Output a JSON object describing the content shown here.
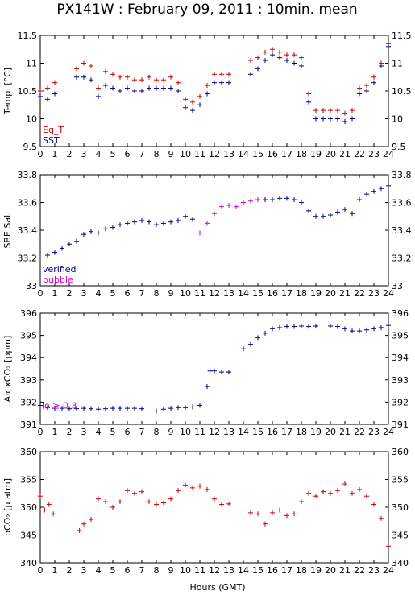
{
  "title": "PX141W : February 09, 2011 : 10min. mean",
  "xlabel": "Hours (GMT)",
  "colors": {
    "red": "#cc0000",
    "blue": "#00008b",
    "magenta": "#cc00cc"
  },
  "chart_data": [
    {
      "type": "scatter",
      "ylabel": "Temp. [°C]",
      "xlim": [
        0,
        24
      ],
      "ylim": [
        9.5,
        11.5
      ],
      "yticks": [
        9.5,
        10,
        10.5,
        11,
        11.5
      ],
      "ytick_labels": [
        "9.5",
        "10",
        "10.5",
        "11",
        "11.5"
      ],
      "legend": "bottom-left",
      "series": [
        {
          "name": "Eq_T",
          "color": "red",
          "x": [
            0,
            0.5,
            1,
            2.5,
            3,
            3.5,
            4,
            4.5,
            5,
            5.5,
            6,
            6.5,
            7,
            7.5,
            8,
            8.5,
            9,
            9.5,
            10,
            10.5,
            11,
            11.5,
            12,
            12.5,
            13,
            14.5,
            15,
            15.5,
            16,
            16.5,
            17,
            17.5,
            18,
            18.5,
            19,
            19.5,
            20,
            20.5,
            21,
            21.5,
            22,
            22.5,
            23,
            23.5,
            24
          ],
          "y": [
            10.5,
            10.55,
            10.65,
            10.9,
            11.0,
            10.95,
            10.55,
            10.85,
            10.8,
            10.75,
            10.75,
            10.7,
            10.7,
            10.75,
            10.7,
            10.7,
            10.75,
            10.65,
            10.35,
            10.3,
            10.4,
            10.6,
            10.8,
            10.8,
            10.8,
            11.05,
            11.1,
            11.2,
            11.25,
            11.2,
            11.15,
            11.15,
            11.1,
            10.45,
            10.15,
            10.15,
            10.15,
            10.15,
            10.1,
            10.15,
            10.55,
            10.6,
            10.75,
            11.0,
            11.35
          ]
        },
        {
          "name": "SST",
          "color": "blue",
          "x": [
            0,
            0.5,
            1,
            2.5,
            3,
            3.5,
            4,
            4.5,
            5,
            5.5,
            6,
            6.5,
            7,
            7.5,
            8,
            8.5,
            9,
            9.5,
            10,
            10.5,
            11,
            11.5,
            12,
            12.5,
            13,
            14.5,
            15,
            15.5,
            16,
            16.5,
            17,
            17.5,
            18,
            18.5,
            19,
            19.5,
            20,
            20.5,
            21,
            21.5,
            22,
            22.5,
            23,
            23.5,
            24
          ],
          "y": [
            10.4,
            10.35,
            10.45,
            10.75,
            10.75,
            10.7,
            10.4,
            10.6,
            10.55,
            10.5,
            10.55,
            10.5,
            10.5,
            10.55,
            10.55,
            10.55,
            10.55,
            10.5,
            10.2,
            10.15,
            10.25,
            10.45,
            10.65,
            10.65,
            10.65,
            10.8,
            10.9,
            11.05,
            11.15,
            11.1,
            11.05,
            11.0,
            10.95,
            10.3,
            10.0,
            10.0,
            10.0,
            10.0,
            9.95,
            10.0,
            10.45,
            10.5,
            10.65,
            10.95,
            11.3
          ]
        }
      ]
    },
    {
      "type": "scatter",
      "ylabel": "SBE Sal.",
      "xlim": [
        0,
        24
      ],
      "ylim": [
        33.0,
        33.8
      ],
      "yticks": [
        33,
        33.2,
        33.4,
        33.6,
        33.8
      ],
      "ytick_labels": [
        "33",
        "33.2",
        "33.4",
        "33.6",
        "33.8"
      ],
      "legend": "bottom-left",
      "series": [
        {
          "name": "verified",
          "color": "blue",
          "x": [
            0,
            0.5,
            1,
            1.5,
            2,
            2.5,
            3,
            3.5,
            4,
            4.5,
            5,
            5.5,
            6,
            6.5,
            7,
            7.5,
            8,
            8.5,
            9,
            9.5,
            10,
            10.5,
            15.5,
            16,
            16.5,
            17,
            17.5,
            18,
            18.5,
            19,
            19.5,
            20,
            20.5,
            21,
            21.5,
            22,
            22.5,
            23,
            23.5,
            24
          ],
          "y": [
            33.2,
            33.22,
            33.24,
            33.27,
            33.3,
            33.32,
            33.37,
            33.39,
            33.38,
            33.41,
            33.42,
            33.44,
            33.45,
            33.46,
            33.47,
            33.46,
            33.44,
            33.45,
            33.46,
            33.47,
            33.5,
            33.48,
            33.62,
            33.62,
            33.63,
            33.63,
            33.62,
            33.6,
            33.54,
            33.5,
            33.5,
            33.51,
            33.53,
            33.55,
            33.52,
            33.62,
            33.66,
            33.68,
            33.7,
            33.72
          ]
        },
        {
          "name": "bubble",
          "color": "magenta",
          "x": [
            11,
            11.5,
            12,
            12.5,
            13,
            13.5,
            14,
            14.5,
            15
          ],
          "y": [
            33.38,
            33.45,
            33.52,
            33.57,
            33.58,
            33.57,
            33.6,
            33.61,
            33.62
          ]
        }
      ]
    },
    {
      "type": "scatter",
      "ylabel": "Air xCO₂ [ppm]",
      "xlim": [
        0,
        24
      ],
      "ylim": [
        391,
        396
      ],
      "yticks": [
        391,
        392,
        393,
        394,
        395,
        396
      ],
      "ytick_labels": [
        "391",
        "392",
        "393",
        "394",
        "395",
        "396"
      ],
      "annotation": "lo ≥ 0.3",
      "series": [
        {
          "name": "",
          "color": "blue",
          "x": [
            0,
            0.5,
            1,
            1.5,
            2,
            2.5,
            3,
            3.5,
            4,
            4.5,
            5,
            5.5,
            6,
            6.5,
            7,
            8,
            8.5,
            9,
            9.5,
            10,
            10.5,
            11,
            11.5,
            11.7,
            12,
            12.5,
            13,
            14,
            14.5,
            15,
            15.5,
            16,
            16.5,
            17,
            17.5,
            18,
            18.5,
            19,
            20,
            20.5,
            21,
            21.5,
            22,
            22.5,
            23,
            23.5,
            24
          ],
          "y": [
            391.85,
            391.75,
            391.72,
            391.72,
            391.7,
            391.7,
            391.72,
            391.7,
            391.68,
            391.7,
            391.72,
            391.72,
            391.72,
            391.72,
            391.7,
            391.6,
            391.68,
            391.72,
            391.75,
            391.75,
            391.78,
            391.85,
            392.7,
            393.4,
            393.4,
            393.35,
            393.35,
            394.4,
            394.6,
            394.9,
            395.1,
            395.3,
            395.35,
            395.4,
            395.4,
            395.42,
            395.4,
            395.42,
            395.42,
            395.4,
            395.3,
            395.2,
            395.2,
            395.25,
            395.3,
            395.35,
            395.45
          ]
        }
      ]
    },
    {
      "type": "scatter",
      "ylabel": "ρCO₂ [μ atm]",
      "xlim": [
        0,
        24
      ],
      "ylim": [
        340,
        360
      ],
      "yticks": [
        340,
        345,
        350,
        355,
        360
      ],
      "ytick_labels": [
        "340",
        "345",
        "350",
        "355",
        "360"
      ],
      "series": [
        {
          "name": "",
          "color": "red",
          "x": [
            0,
            0.3,
            0.6,
            0.9,
            2.7,
            3,
            3.5,
            4,
            4.5,
            5,
            5.5,
            6,
            6.5,
            7,
            7.5,
            8,
            8.5,
            9,
            9.5,
            10,
            10.5,
            11,
            11.5,
            12,
            12.5,
            13,
            14.5,
            15,
            15.5,
            16,
            16.5,
            17,
            17.5,
            18,
            18.5,
            19,
            19.5,
            20,
            20.5,
            21,
            21.5,
            22,
            22.5,
            23,
            23.5,
            24
          ],
          "y": [
            352,
            349.5,
            350.5,
            348.8,
            345.8,
            347,
            347.8,
            351.5,
            351,
            350,
            351,
            353,
            352.5,
            352.8,
            351,
            350.5,
            350.8,
            351.5,
            353,
            354,
            353.5,
            353.8,
            353.2,
            351.5,
            350.5,
            350.6,
            349,
            348.8,
            347,
            349,
            349.5,
            348.5,
            348.8,
            351,
            352.5,
            352,
            352.8,
            352.5,
            353,
            354.2,
            352.5,
            353.2,
            352,
            350.5,
            348,
            343
          ]
        }
      ]
    }
  ]
}
